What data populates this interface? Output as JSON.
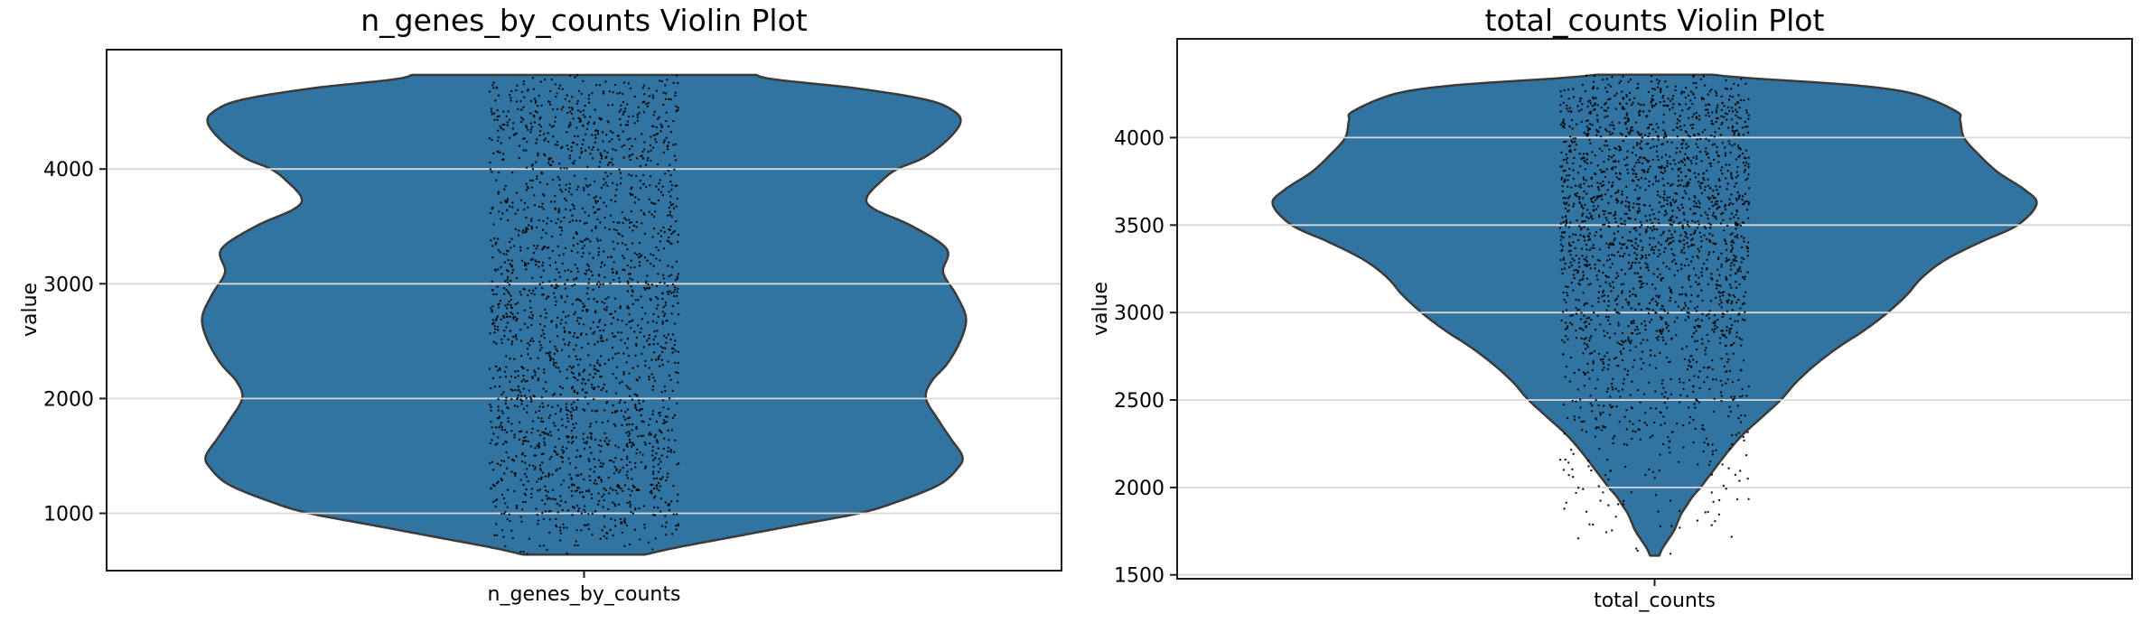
{
  "figure": {
    "background": "#ffffff",
    "text_color": "#000000"
  },
  "chart_data": [
    {
      "type": "violin",
      "title": "n_genes_by_counts Violin Plot",
      "ylabel": "value",
      "xlabel": "",
      "xticklabels": [
        "n_genes_by_counts"
      ],
      "yticks": [
        1000,
        2000,
        3000,
        4000
      ],
      "ylim": [
        500,
        5040
      ],
      "data_range": [
        640,
        4820
      ],
      "grid": true,
      "legend": null,
      "violin_color": "#3274a1",
      "violin_edge_color": "#3a3a3a",
      "grid_color": "#d8d8d8",
      "spine_color": "#1c1c1c",
      "point_color": "#000000",
      "strip": {
        "count": 2200,
        "jitter_frac": 0.099,
        "seed": 11,
        "point_radius": 1.2
      },
      "violin_width_frac": 0.8,
      "density_profile": [
        [
          640,
          0.16
        ],
        [
          700,
          0.24
        ],
        [
          800,
          0.4
        ],
        [
          900,
          0.56
        ],
        [
          1000,
          0.72
        ],
        [
          1100,
          0.82
        ],
        [
          1250,
          0.93
        ],
        [
          1400,
          0.98
        ],
        [
          1500,
          0.99
        ],
        [
          1650,
          0.96
        ],
        [
          1800,
          0.93
        ],
        [
          2000,
          0.895
        ],
        [
          2150,
          0.91
        ],
        [
          2300,
          0.95
        ],
        [
          2500,
          0.985
        ],
        [
          2700,
          1.0
        ],
        [
          2900,
          0.975
        ],
        [
          3100,
          0.94
        ],
        [
          3300,
          0.95
        ],
        [
          3500,
          0.86
        ],
        [
          3650,
          0.76
        ],
        [
          3750,
          0.74
        ],
        [
          3900,
          0.78
        ],
        [
          4000,
          0.82
        ],
        [
          4100,
          0.89
        ],
        [
          4250,
          0.95
        ],
        [
          4400,
          0.985
        ],
        [
          4500,
          0.97
        ],
        [
          4600,
          0.9
        ],
        [
          4700,
          0.72
        ],
        [
          4780,
          0.5
        ],
        [
          4820,
          0.45
        ]
      ]
    },
    {
      "type": "violin",
      "title": "total_counts Violin Plot",
      "ylabel": "value",
      "xlabel": "",
      "xticklabels": [
        "total_counts"
      ],
      "yticks": [
        1500,
        2000,
        2500,
        3000,
        3500,
        4000
      ],
      "ylim": [
        1478,
        4565
      ],
      "data_range": [
        1610,
        4360
      ],
      "grid": true,
      "legend": null,
      "violin_color": "#3274a1",
      "violin_edge_color": "#3a3a3a",
      "grid_color": "#d8d8d8",
      "spine_color": "#1c1c1c",
      "point_color": "#000000",
      "strip": {
        "count": 2200,
        "jitter_frac": 0.099,
        "seed": 23,
        "point_radius": 1.2
      },
      "violin_width_frac": 0.8,
      "density_profile": [
        [
          1610,
          0.012
        ],
        [
          1650,
          0.02
        ],
        [
          1700,
          0.035
        ],
        [
          1750,
          0.05
        ],
        [
          1800,
          0.06
        ],
        [
          1850,
          0.07
        ],
        [
          1900,
          0.085
        ],
        [
          1950,
          0.1
        ],
        [
          2000,
          0.12
        ],
        [
          2100,
          0.155
        ],
        [
          2200,
          0.19
        ],
        [
          2300,
          0.23
        ],
        [
          2400,
          0.28
        ],
        [
          2500,
          0.33
        ],
        [
          2600,
          0.37
        ],
        [
          2700,
          0.42
        ],
        [
          2800,
          0.48
        ],
        [
          2900,
          0.55
        ],
        [
          3000,
          0.61
        ],
        [
          3100,
          0.66
        ],
        [
          3200,
          0.7
        ],
        [
          3300,
          0.76
        ],
        [
          3400,
          0.85
        ],
        [
          3500,
          0.95
        ],
        [
          3620,
          1.0
        ],
        [
          3700,
          0.97
        ],
        [
          3800,
          0.9
        ],
        [
          3900,
          0.85
        ],
        [
          4000,
          0.81
        ],
        [
          4100,
          0.8
        ],
        [
          4150,
          0.79
        ],
        [
          4250,
          0.68
        ],
        [
          4300,
          0.52
        ],
        [
          4340,
          0.25
        ],
        [
          4360,
          0.15
        ]
      ]
    }
  ]
}
